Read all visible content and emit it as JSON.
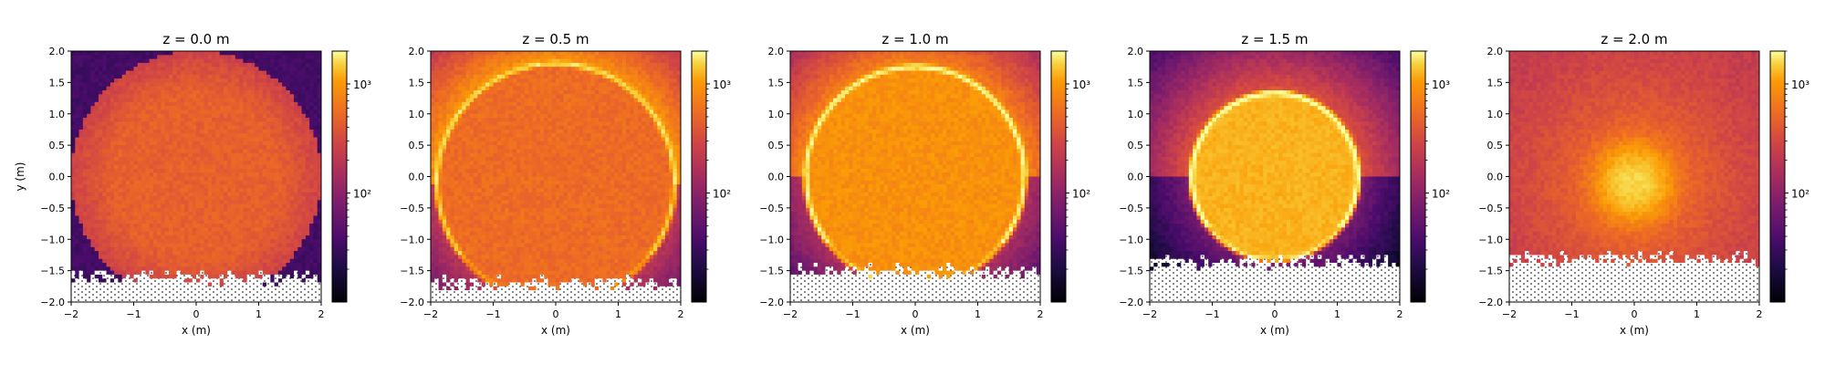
{
  "chart_data": [
    {
      "type": "heatmap",
      "title": "z = 0.0 m",
      "xlabel": "x (m)",
      "ylabel": "y (m)",
      "xlim": [
        -2,
        2
      ],
      "ylim": [
        -2,
        2
      ],
      "xticks": [
        "−2",
        "−1",
        "0",
        "1",
        "2"
      ],
      "yticks": [
        "2.0",
        "1.5",
        "1.0",
        "0.5",
        "0.0",
        "−0.5",
        "−1.0",
        "−1.5",
        "−2.0"
      ],
      "colorbar": {
        "scale": "log",
        "colormap": "inferno",
        "range": [
          10,
          2000
        ],
        "tick_labels": [
          "10²",
          "10³"
        ],
        "tick_values": [
          100,
          1000
        ]
      },
      "pattern": {
        "kind": "uniform_disk",
        "center": [
          0,
          0
        ],
        "radius": 2.0,
        "inside": 300,
        "outside": 0,
        "empty_below_y": -1.6
      }
    },
    {
      "type": "heatmap",
      "title": "z = 0.5 m",
      "xlabel": "x (m)",
      "ylabel": "",
      "xlim": [
        -2,
        2
      ],
      "ylim": [
        -2,
        2
      ],
      "xticks": [
        "−2",
        "−1",
        "0",
        "1",
        "2"
      ],
      "yticks": [
        "2.0",
        "1.5",
        "1.0",
        "0.5",
        "0.0",
        "−0.5",
        "−1.0",
        "−1.5",
        "−2.0"
      ],
      "colorbar": {
        "scale": "log",
        "colormap": "inferno",
        "range": [
          10,
          2000
        ],
        "tick_labels": [
          "10²",
          "10³"
        ],
        "tick_values": [
          100,
          1000
        ]
      },
      "pattern": {
        "kind": "ring_with_caustic",
        "center": [
          0,
          -0.1
        ],
        "radius": 1.9,
        "inside": 350,
        "ring": 900,
        "outside": 600,
        "empty_below_y": -1.7
      }
    },
    {
      "type": "heatmap",
      "title": "z = 1.0 m",
      "xlabel": "x (m)",
      "ylabel": "",
      "xlim": [
        -2,
        2
      ],
      "ylim": [
        -2,
        2
      ],
      "xticks": [
        "−2",
        "−1",
        "0",
        "1",
        "2"
      ],
      "yticks": [
        "2.0",
        "1.5",
        "1.0",
        "0.5",
        "0.0",
        "−0.5",
        "−1.0",
        "−1.5",
        "−2.0"
      ],
      "colorbar": {
        "scale": "log",
        "colormap": "inferno",
        "range": [
          10,
          2000
        ],
        "tick_labels": [
          "10²",
          "10³"
        ],
        "tick_values": [
          100,
          1000
        ]
      },
      "pattern": {
        "kind": "ring_with_caustic",
        "center": [
          0,
          0.0
        ],
        "radius": 1.75,
        "inside": 550,
        "ring": 1400,
        "outside": 500,
        "empty_below_y": -1.5
      }
    },
    {
      "type": "heatmap",
      "title": "z = 1.5 m",
      "xlabel": "x (m)",
      "ylabel": "",
      "xlim": [
        -2,
        2
      ],
      "ylim": [
        -2,
        2
      ],
      "xticks": [
        "−2",
        "−1",
        "0",
        "1",
        "2"
      ],
      "yticks": [
        "2.0",
        "1.5",
        "1.0",
        "0.5",
        "0.0",
        "−0.5",
        "−1.0",
        "−1.5",
        "−2.0"
      ],
      "colorbar": {
        "scale": "log",
        "colormap": "inferno",
        "range": [
          10,
          2000
        ],
        "tick_labels": [
          "10²",
          "10³"
        ],
        "tick_values": [
          100,
          1000
        ]
      },
      "pattern": {
        "kind": "ring_with_caustic",
        "center": [
          0,
          0.0
        ],
        "radius": 1.33,
        "inside": 800,
        "ring": 1900,
        "outside": 250,
        "empty_below_y": -1.35
      }
    },
    {
      "type": "heatmap",
      "title": "z = 2.0 m",
      "xlabel": "x (m)",
      "ylabel": "",
      "xlim": [
        -2,
        2
      ],
      "ylim": [
        -2,
        2
      ],
      "xticks": [
        "−2",
        "−1",
        "0",
        "1",
        "2"
      ],
      "yticks": [
        "2.0",
        "1.5",
        "1.0",
        "0.5",
        "0.0",
        "−0.5",
        "−1.0",
        "−1.5",
        "−2.0"
      ],
      "colorbar": {
        "scale": "log",
        "colormap": "inferno",
        "range": [
          10,
          2000
        ],
        "tick_labels": [
          "10²",
          "10³"
        ],
        "tick_values": [
          100,
          1000
        ]
      },
      "pattern": {
        "kind": "focal_spot",
        "center": [
          0,
          -0.1
        ],
        "peak": 900,
        "edge": 150,
        "empty_below_y": -1.3
      }
    }
  ]
}
